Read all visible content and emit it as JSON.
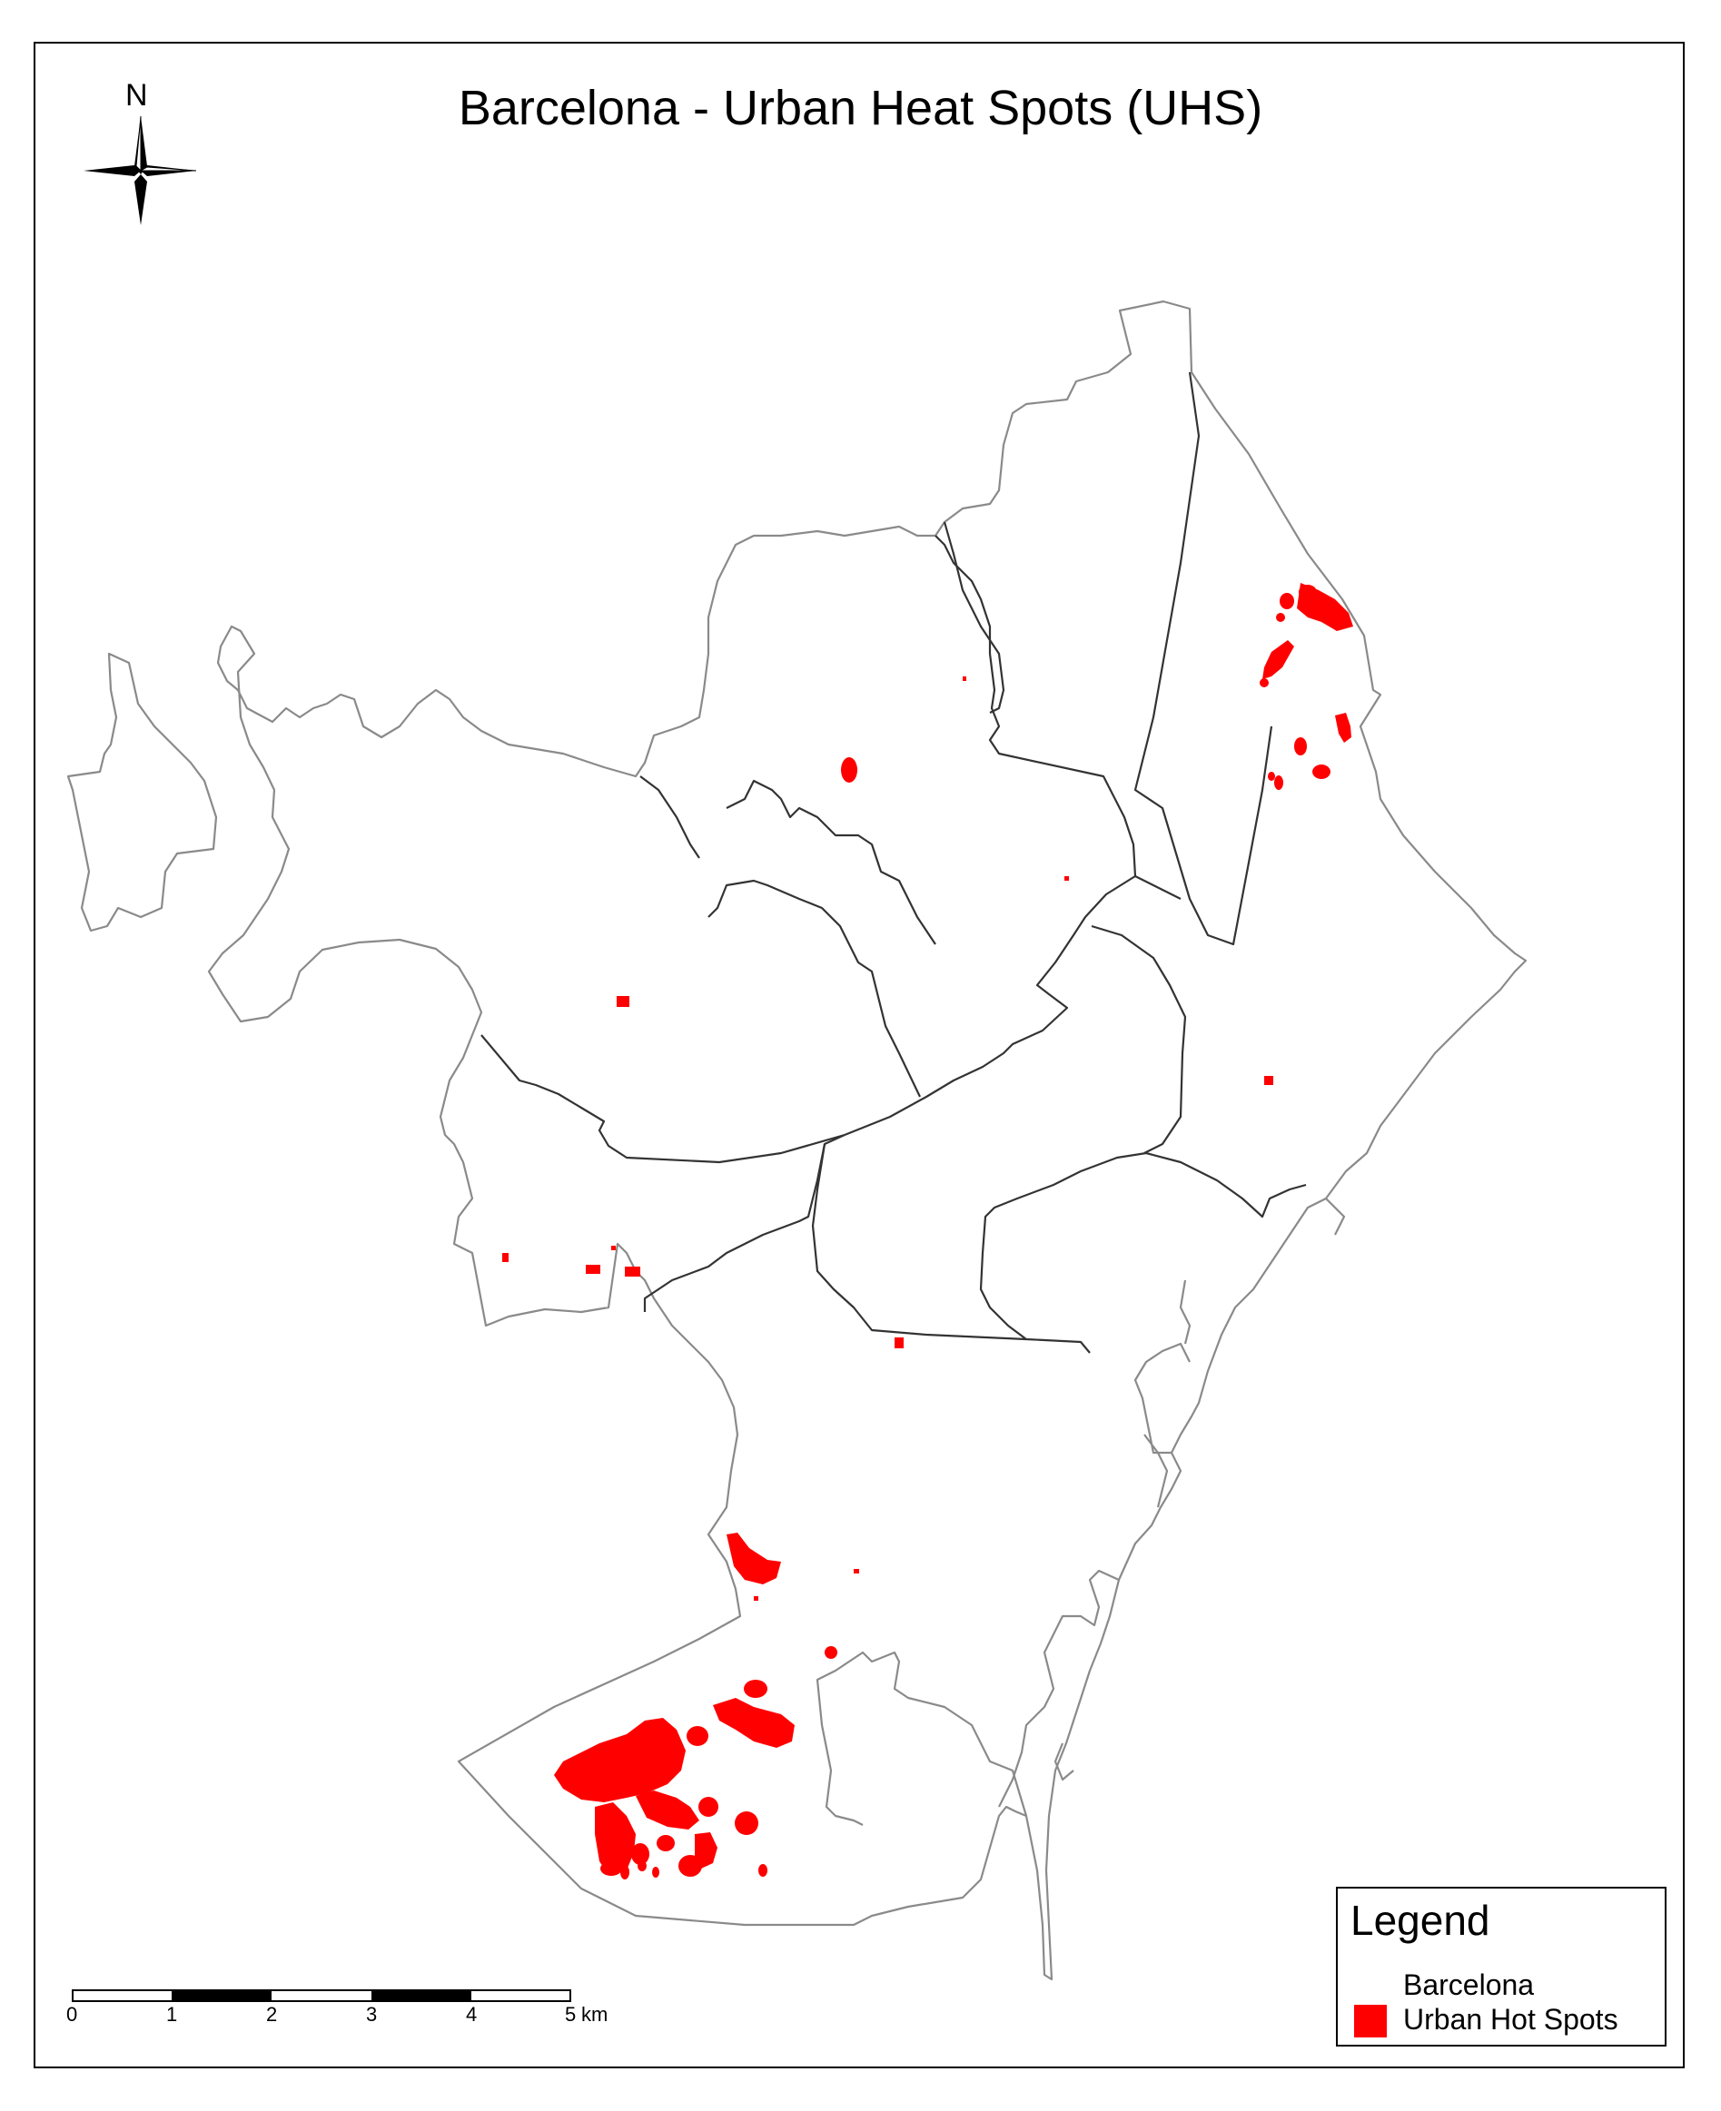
{
  "title": "Barcelona - Urban Heat Spots (UHS)",
  "north_arrow": {
    "label": "N",
    "icon": "north-arrow-icon"
  },
  "legend": {
    "title": "Legend",
    "items": [
      {
        "label": "Barcelona",
        "symbol": "none"
      },
      {
        "label": "Urban Hot Spots",
        "symbol": "filled-square",
        "color": "#ff0000"
      }
    ]
  },
  "scale_bar": {
    "ticks": [
      "0",
      "1",
      "2",
      "3",
      "4",
      "5"
    ],
    "unit": "km"
  },
  "colors": {
    "hot_spot": "#ff0000",
    "district_border": "#333333",
    "city_outline": "#888888"
  }
}
